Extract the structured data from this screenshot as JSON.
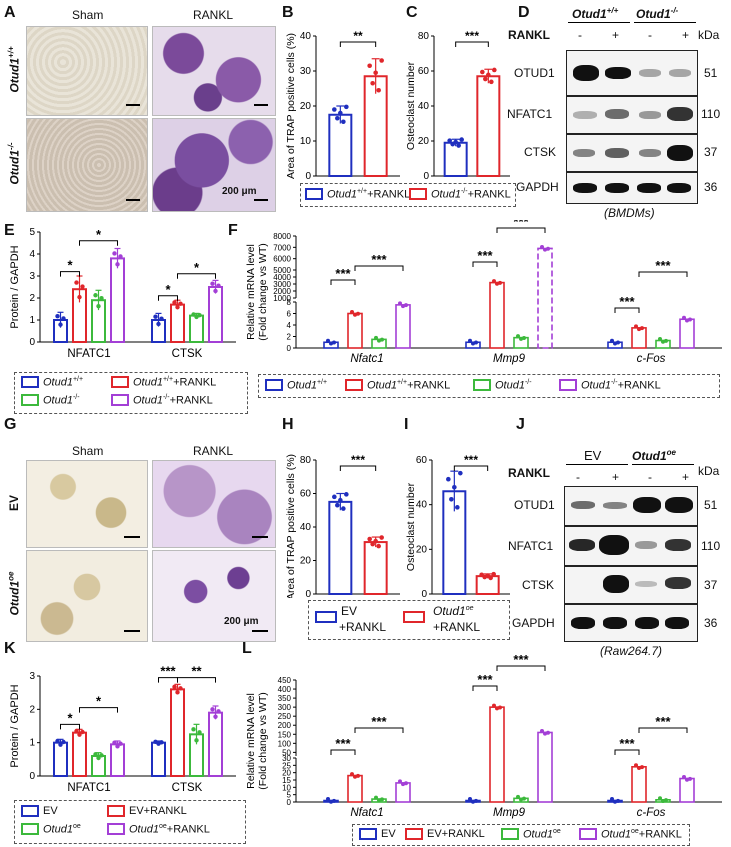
{
  "panels": {
    "A": {
      "label": "A",
      "col_sham": "Sham",
      "col_rankl": "RANKL",
      "row1": "Otud1",
      "row1_sup": "+/+",
      "row2": "Otud1",
      "row2_sup": "-/-",
      "scale": "200 μm"
    },
    "B": {
      "label": "B",
      "ylabel": "Area of TRAP positive cells (%)",
      "sig": "**"
    },
    "C": {
      "label": "C",
      "ylabel": "Osteoclast number",
      "sig": "***"
    },
    "BC_legend": {
      "item1": "Otud1+/+ +RANKL",
      "item1_text": "Otud1",
      "item1_sup": "+/+",
      "item1_tail": "+RANKL",
      "item2_text": "Otud1",
      "item2_sup": "-/-",
      "item2_tail": "+RANKL"
    },
    "D": {
      "label": "D",
      "geno1": "Otud1",
      "geno1_sup": "+/+",
      "geno2": "Otud1",
      "geno2_sup": "-/-",
      "rankl": "RANKL",
      "signs": [
        "-",
        "+",
        "-",
        "+"
      ],
      "unit": "kDa",
      "rows": [
        {
          "name": "OTUD1",
          "kda": "51"
        },
        {
          "name": "NFATC1",
          "kda": "110"
        },
        {
          "name": "CTSK",
          "kda": "37"
        },
        {
          "name": "GAPDH",
          "kda": "36"
        }
      ],
      "caption": "(BMDMs)"
    },
    "E": {
      "label": "E",
      "ylabel": "Protein / GAPDH",
      "groups": [
        "NFATC1",
        "CTSK"
      ]
    },
    "F": {
      "label": "F",
      "ylabel1": "Relative mRNA level",
      "ylabel2": "(Fold change vs WT)",
      "genes": [
        "Nfatc1",
        "Mmp9",
        "c-Fos"
      ]
    },
    "EF_legend": {
      "a": "Otud1",
      "a_sup": "+/+",
      "b": "Otud1",
      "b_sup": "+/+",
      "b_tail": "+RANKL",
      "c": "Otud1",
      "c_sup": "-/-",
      "d": "Otud1",
      "d_sup": "-/-",
      "d_tail": "+RANKL"
    },
    "G": {
      "label": "G",
      "col_sham": "Sham",
      "col_rankl": "RANKL",
      "row1": "EV",
      "row2": "Otud1",
      "row2_sup": "oe",
      "scale": "200 μm"
    },
    "H": {
      "label": "H",
      "ylabel": "Area of TRAP positive cells (%)",
      "sig": "***"
    },
    "I": {
      "label": "I",
      "ylabel": "Osteoclast number",
      "sig": "***"
    },
    "HI_legend": {
      "ev1": "EV",
      "ev2": "+RANKL",
      "oe1": "Otud1",
      "oe_sup": "oe",
      "oe2": "+RANKL"
    },
    "J": {
      "label": "J",
      "geno1": "EV",
      "geno2": "Otud1",
      "geno2_sup": "oe",
      "rankl": "RANKL",
      "signs": [
        "-",
        "+",
        "-",
        "+"
      ],
      "unit": "kDa",
      "rows": [
        {
          "name": "OTUD1",
          "kda": "51"
        },
        {
          "name": "NFATC1",
          "kda": "110"
        },
        {
          "name": "CTSK",
          "kda": "37"
        },
        {
          "name": "GAPDH",
          "kda": "36"
        }
      ],
      "caption": "(Raw264.7)"
    },
    "K": {
      "label": "K",
      "ylabel": "Protein / GAPDH",
      "groups": [
        "NFATC1",
        "CTSK"
      ]
    },
    "L": {
      "label": "L",
      "ylabel1": "Relative mRNA level",
      "ylabel2": "(Fold change vs WT)",
      "genes": [
        "Nfatc1",
        "Mmp9",
        "c-Fos"
      ]
    },
    "KL_legend": {
      "a": "EV",
      "b": "EV+RANKL",
      "c": "Otud1",
      "c_sup": "oe",
      "d": "Otud1",
      "d_sup": "oe",
      "d_tail": "+RANKL"
    }
  },
  "colors": {
    "blue": "#1f2fbf",
    "red": "#e0262b",
    "green": "#3cb93c",
    "purple": "#a33fd6"
  },
  "chart_data": [
    {
      "id": "B",
      "type": "bar",
      "categories": [
        "Otud1+/+ +RANKL",
        "Otud1-/- +RANKL"
      ],
      "values": [
        17.5,
        28.5
      ],
      "errors": [
        2.5,
        5
      ],
      "ylim": [
        0,
        40
      ],
      "yticks": [
        0,
        10,
        20,
        30,
        40
      ],
      "ylabel": "Area of TRAP positive cells (%)",
      "annotations": [
        "**"
      ]
    },
    {
      "id": "C",
      "type": "bar",
      "categories": [
        "Otud1+/+ +RANKL",
        "Otud1-/- +RANKL"
      ],
      "values": [
        19,
        57
      ],
      "errors": [
        2,
        4
      ],
      "ylim": [
        0,
        80
      ],
      "yticks": [
        0,
        20,
        40,
        60,
        80
      ],
      "ylabel": "Osteoclast number",
      "annotations": [
        "***"
      ]
    },
    {
      "id": "E",
      "type": "bar",
      "categories": [
        "NFATC1",
        "CTSK"
      ],
      "series": [
        {
          "name": "Otud1+/+",
          "values": [
            1.0,
            1.0
          ],
          "errors": [
            0.35,
            0.3
          ]
        },
        {
          "name": "Otud1+/+ +RANKL",
          "values": [
            2.4,
            1.7
          ],
          "errors": [
            0.6,
            0.2
          ]
        },
        {
          "name": "Otud1-/-",
          "values": [
            1.9,
            1.2
          ],
          "errors": [
            0.45,
            0.1
          ]
        },
        {
          "name": "Otud1-/- +RANKL",
          "values": [
            3.8,
            2.5
          ],
          "errors": [
            0.45,
            0.3
          ]
        }
      ],
      "ylim": [
        0,
        5
      ],
      "yticks": [
        0,
        1,
        2,
        3,
        4,
        5
      ],
      "ylabel": "Protein / GAPDH",
      "annotations": [
        "*",
        "*",
        "*",
        "*"
      ]
    },
    {
      "id": "F",
      "type": "bar",
      "categories": [
        "Nfatc1",
        "Mmp9",
        "c-Fos"
      ],
      "series": [
        {
          "name": "Otud1+/+",
          "values": [
            1,
            1,
            1
          ]
        },
        {
          "name": "Otud1+/+ +RANKL",
          "values": [
            6,
            3200,
            3.5
          ]
        },
        {
          "name": "Otud1-/-",
          "values": [
            1.5,
            1.8,
            1.3
          ]
        },
        {
          "name": "Otud1-/- +RANKL",
          "values": [
            7.5,
            6900,
            5
          ]
        }
      ],
      "yticks": [
        0,
        2,
        4,
        6,
        8,
        1000,
        2000,
        3000,
        4000,
        5000,
        6000,
        7000,
        8000
      ],
      "ylabel": "Relative mRNA level (Fold change vs WT)",
      "annotations": [
        "***",
        "***",
        "***",
        "***",
        "***",
        "***"
      ]
    },
    {
      "id": "H",
      "type": "bar",
      "categories": [
        "EV +RANKL",
        "Otud1oe +RANKL"
      ],
      "values": [
        55,
        31
      ],
      "errors": [
        5,
        3
      ],
      "ylim": [
        0,
        80
      ],
      "yticks": [
        0,
        20,
        40,
        60,
        80
      ],
      "ylabel": "Area of TRAP positive cells (%)",
      "annotations": [
        "***"
      ]
    },
    {
      "id": "I",
      "type": "bar",
      "categories": [
        "EV +RANKL",
        "Otud1oe +RANKL"
      ],
      "values": [
        46,
        8
      ],
      "errors": [
        9,
        1
      ],
      "ylim": [
        0,
        60
      ],
      "yticks": [
        0,
        20,
        40,
        60
      ],
      "ylabel": "Osteoclast number",
      "annotations": [
        "***"
      ]
    },
    {
      "id": "K",
      "type": "bar",
      "categories": [
        "NFATC1",
        "CTSK"
      ],
      "series": [
        {
          "name": "EV",
          "values": [
            1.0,
            1.0
          ],
          "errors": [
            0.1,
            0.05
          ]
        },
        {
          "name": "EV+RANKL",
          "values": [
            1.3,
            2.6
          ],
          "errors": [
            0.1,
            0.15
          ]
        },
        {
          "name": "Otud1oe",
          "values": [
            0.6,
            1.25
          ],
          "errors": [
            0.1,
            0.3
          ]
        },
        {
          "name": "Otud1oe+RANKL",
          "values": [
            0.95,
            1.9
          ],
          "errors": [
            0.1,
            0.2
          ]
        }
      ],
      "ylim": [
        0,
        3
      ],
      "yticks": [
        0,
        1,
        2,
        3
      ],
      "ylabel": "Protein / GAPDH",
      "annotations": [
        "*",
        "*",
        "***",
        "**"
      ]
    },
    {
      "id": "L",
      "type": "bar",
      "categories": [
        "Nfatc1",
        "Mmp9",
        "c-Fos"
      ],
      "series": [
        {
          "name": "EV",
          "values": [
            1,
            1,
            1
          ]
        },
        {
          "name": "EV+RANKL",
          "values": [
            18,
            300,
            24
          ]
        },
        {
          "name": "Otud1oe",
          "values": [
            2,
            2.5,
            1.5
          ]
        },
        {
          "name": "Otud1oe+RANKL",
          "values": [
            13,
            160,
            16
          ]
        }
      ],
      "yticks": [
        0,
        5,
        10,
        15,
        20,
        25,
        30,
        50,
        100,
        150,
        200,
        250,
        300,
        350,
        400,
        450
      ],
      "ylabel": "Relative mRNA level (Fold change vs WT)",
      "annotations": [
        "***",
        "***",
        "***",
        "***",
        "***",
        "***"
      ]
    }
  ]
}
